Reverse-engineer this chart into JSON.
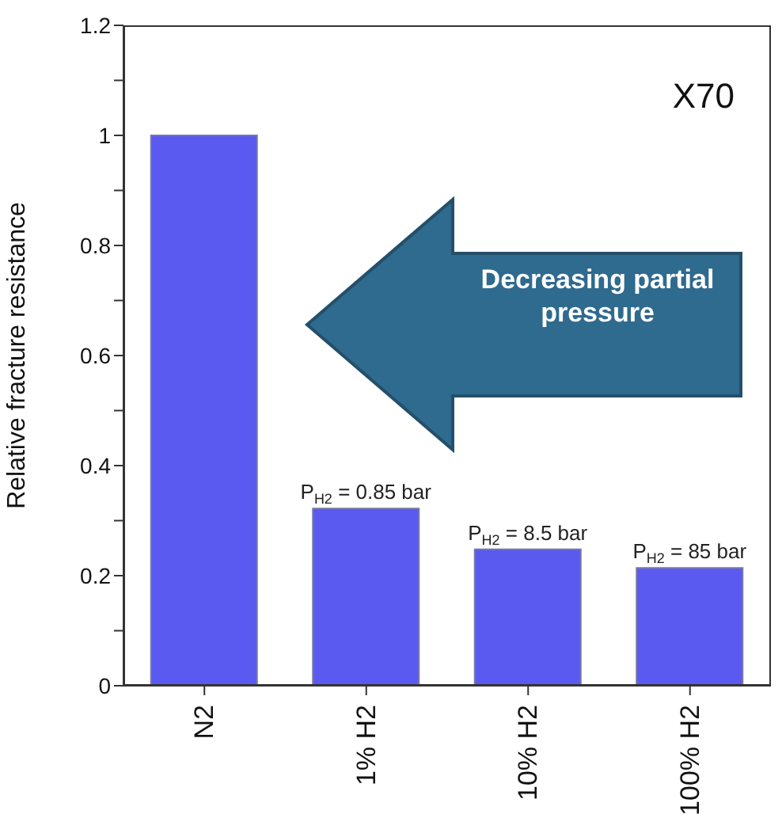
{
  "chart_data": {
    "type": "bar",
    "ylabel": "Relative fracture resistance",
    "categories": [
      "N2",
      "1% H2",
      "10% H2",
      "100% H2"
    ],
    "values": [
      1.0,
      0.322,
      0.248,
      0.214
    ],
    "color": "#5a5af0",
    "ylim": [
      0,
      1.2
    ],
    "yticks": [
      0,
      {
        "value": 0.1,
        "label": null
      },
      0.2,
      {
        "value": 0.3,
        "label": null
      },
      0.4,
      {
        "value": 0.5,
        "label": null
      },
      0.6,
      {
        "value": 0.7,
        "label": null
      },
      0.8,
      {
        "value": 0.9,
        "label": null
      },
      1,
      {
        "value": 1.1,
        "label": null
      },
      1.2
    ],
    "annotations": [
      "X70",
      "Decreasing partial pressure",
      {
        "text": "P$_{H2}$ = 0.85 bar",
        "x": "1% H2",
        "y": 0.322
      },
      {
        "text": "P$_{H2}$ = 8.5 bar",
        "x": "10% H2",
        "y": 0.248
      },
      {
        "text": "P$_{H2}$ = 85 bar",
        "x": "100% H2",
        "y": 0.214
      }
    ],
    "grid": false
  }
}
